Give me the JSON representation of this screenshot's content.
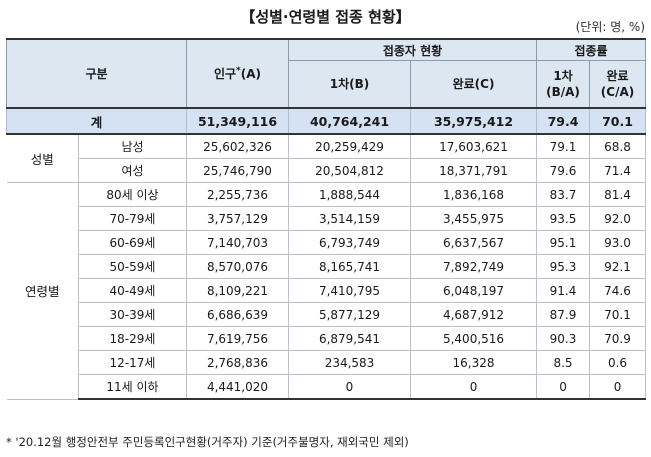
{
  "title": "【성별·연령별 접종 현황】",
  "unit": "(단위: 명, %)",
  "header": {
    "category": "구분",
    "population": "인구",
    "population_mark": "*",
    "population_code": "(A)",
    "vaccinated_group": "접종자 현황",
    "first_dose": "1차(B)",
    "complete": "완료(C)",
    "rate_group": "접종률",
    "rate_first_l1": "1차",
    "rate_first_l2": "(B/A)",
    "rate_complete_l1": "완료",
    "rate_complete_l2": "(C/A)"
  },
  "total": {
    "label": "계",
    "population": "51,349,116",
    "first": "40,764,241",
    "complete": "35,975,412",
    "rate_first": "79.4",
    "rate_complete": "70.1"
  },
  "sex": {
    "label": "성별",
    "rows": [
      {
        "label": "남성",
        "population": "25,602,326",
        "first": "20,259,429",
        "complete": "17,603,621",
        "rate_first": "79.1",
        "rate_complete": "68.8"
      },
      {
        "label": "여성",
        "population": "25,746,790",
        "first": "20,504,812",
        "complete": "18,371,791",
        "rate_first": "79.6",
        "rate_complete": "71.4"
      }
    ]
  },
  "age": {
    "label": "연령별",
    "rows": [
      {
        "label": "80세 이상",
        "population": "2,255,736",
        "first": "1,888,544",
        "complete": "1,836,168",
        "rate_first": "83.7",
        "rate_complete": "81.4"
      },
      {
        "label": "70-79세",
        "population": "3,757,129",
        "first": "3,514,159",
        "complete": "3,455,975",
        "rate_first": "93.5",
        "rate_complete": "92.0"
      },
      {
        "label": "60-69세",
        "population": "7,140,703",
        "first": "6,793,749",
        "complete": "6,637,567",
        "rate_first": "95.1",
        "rate_complete": "93.0"
      },
      {
        "label": "50-59세",
        "population": "8,570,076",
        "first": "8,165,741",
        "complete": "7,892,749",
        "rate_first": "95.3",
        "rate_complete": "92.1"
      },
      {
        "label": "40-49세",
        "population": "8,109,221",
        "first": "7,410,795",
        "complete": "6,048,197",
        "rate_first": "91.4",
        "rate_complete": "74.6"
      },
      {
        "label": "30-39세",
        "population": "6,686,639",
        "first": "5,877,129",
        "complete": "4,687,912",
        "rate_first": "87.9",
        "rate_complete": "70.1"
      },
      {
        "label": "18-29세",
        "population": "7,619,756",
        "first": "6,879,541",
        "complete": "5,400,516",
        "rate_first": "90.3",
        "rate_complete": "70.9"
      },
      {
        "label": "12-17세",
        "population": "2,768,836",
        "first": "234,583",
        "complete": "16,328",
        "rate_first": "8.5",
        "rate_complete": "0.6"
      },
      {
        "label": "11세 이하",
        "population": "4,441,020",
        "first": "0",
        "complete": "0",
        "rate_first": "0",
        "rate_complete": "0"
      }
    ]
  },
  "footnote": "* '20.12월 행정안전부 주민등록인구현황(거주자) 기준(거주불명자, 재외국민 제외)"
}
